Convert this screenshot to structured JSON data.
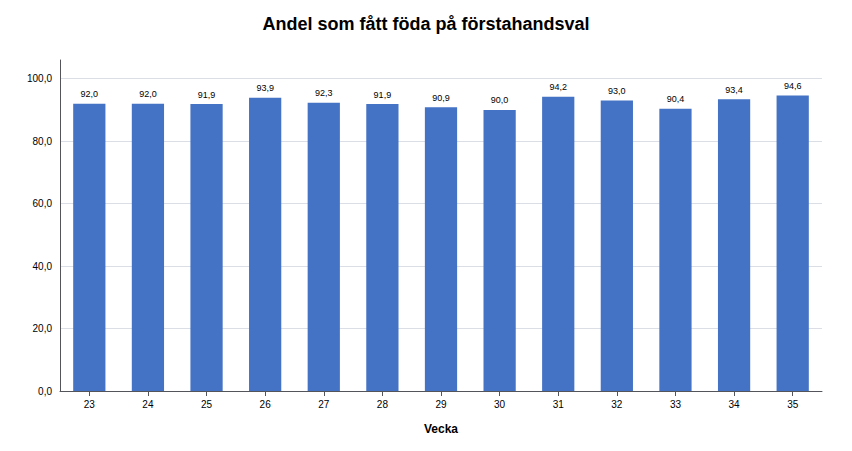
{
  "chart_data": {
    "type": "bar",
    "title": "Andel som fått föda på förstahandsval",
    "xlabel": "Vecka",
    "categories": [
      23,
      24,
      25,
      26,
      27,
      28,
      29,
      30,
      31,
      32,
      33,
      34,
      35
    ],
    "values": [
      92.0,
      92.0,
      91.9,
      93.9,
      92.3,
      91.9,
      90.9,
      90.0,
      94.2,
      93.0,
      90.4,
      93.4,
      94.6
    ],
    "value_labels": [
      "92,0",
      "92,0",
      "91,9",
      "93,9",
      "92,3",
      "91,9",
      "90,9",
      "90,0",
      "94,2",
      "93,0",
      "90,4",
      "93,4",
      "94,6"
    ],
    "data_labels": true,
    "color": "#4472C4",
    "ylim": [
      0,
      106
    ],
    "yticks": [
      {
        "value": 0,
        "label": "0,0"
      },
      {
        "value": 20,
        "label": "20,0"
      },
      {
        "value": 40,
        "label": "40,0"
      },
      {
        "value": 60,
        "label": "60,0"
      },
      {
        "value": 80,
        "label": "80,0"
      },
      {
        "value": 100,
        "label": "100,0"
      }
    ],
    "grid": true
  }
}
